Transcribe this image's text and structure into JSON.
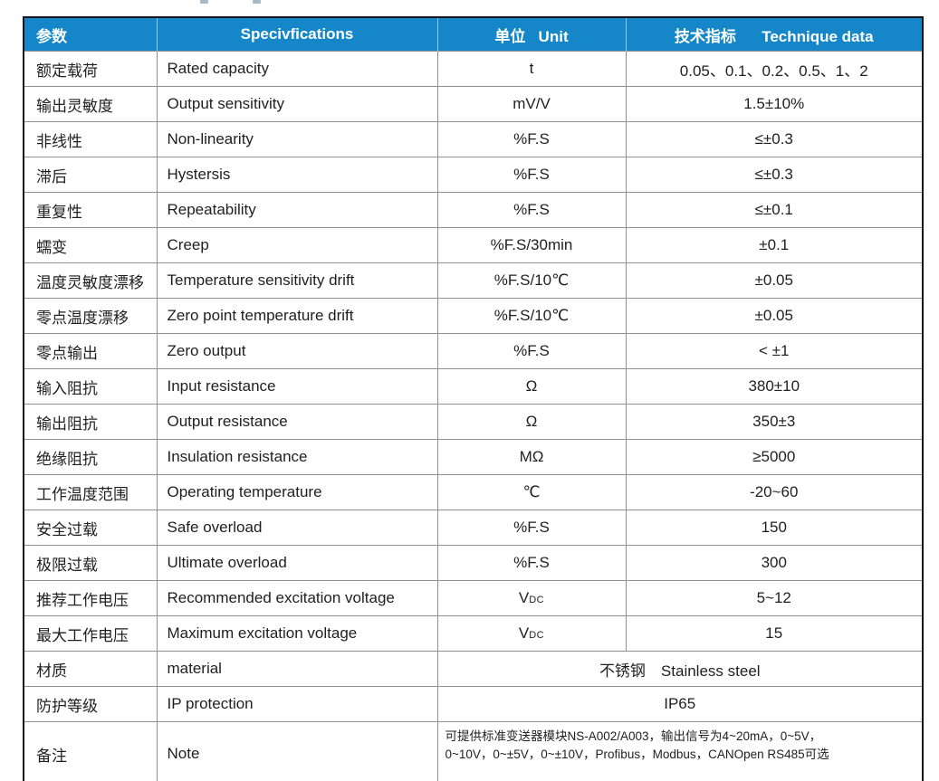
{
  "colors": {
    "header_bg": "#1587c8",
    "header_text": "#ffffff",
    "outer_border": "#15151d",
    "grid_line": "#8f8f8f",
    "body_text": "#1f1f1f"
  },
  "table": {
    "header": {
      "param": "参数",
      "spec": "Specivfications",
      "unit": "单位   Unit",
      "data": "技术指标      Technique data"
    },
    "rows": [
      {
        "cn": "额定载荷",
        "en": "Rated capacity",
        "unit": "t",
        "value": "0.05、0.1、0.2、0.5、1、2"
      },
      {
        "cn": "输出灵敏度",
        "en": "Output sensitivity",
        "unit": "mV/V",
        "value": "1.5±10%"
      },
      {
        "cn": "非线性",
        "en": "Non-linearity",
        "unit": "%F.S",
        "value": "≤±0.3"
      },
      {
        "cn": "滞后",
        "en": "Hystersis",
        "unit": "%F.S",
        "value": "≤±0.3"
      },
      {
        "cn": "重复性",
        "en": "Repeatability",
        "unit": "%F.S",
        "value": "≤±0.1"
      },
      {
        "cn": "蠕变",
        "en": "Creep",
        "unit": "%F.S/30min",
        "value": "±0.1"
      },
      {
        "cn": "温度灵敏度漂移",
        "en": "Temperature sensitivity drift",
        "unit": "%F.S/10℃",
        "value": "±0.05"
      },
      {
        "cn": "零点温度漂移",
        "en": "Zero point temperature drift",
        "unit": "%F.S/10℃",
        "value": "±0.05"
      },
      {
        "cn": "零点输出",
        "en": "Zero output",
        "unit": "%F.S",
        "value": "< ±1"
      },
      {
        "cn": "输入阻抗",
        "en": "Input resistance",
        "unit": "Ω",
        "value": "380±10"
      },
      {
        "cn": "输出阻抗",
        "en": "Output resistance",
        "unit": "Ω",
        "value": "350±3"
      },
      {
        "cn": "绝缘阻抗",
        "en": "Insulation resistance",
        "unit": "MΩ",
        "value": "≥5000"
      },
      {
        "cn": "工作温度范围",
        "en": "Operating temperature",
        "unit": "℃",
        "value": "-20~60"
      },
      {
        "cn": "安全过载",
        "en": "Safe overload",
        "unit": "%F.S",
        "value": "150"
      },
      {
        "cn": "极限过载",
        "en": "Ultimate overload",
        "unit": "%F.S",
        "value": "300"
      },
      {
        "cn": "推荐工作电压",
        "en": "Recommended excitation voltage",
        "unit": {
          "base": "V",
          "small": "DC"
        },
        "value": "5~12"
      },
      {
        "cn": "最大工作电压",
        "en": "Maximum excitation voltage",
        "unit": {
          "base": "V",
          "small": "DC"
        },
        "value": "15"
      },
      {
        "cn": "材质",
        "en": "material",
        "merged": "不锈钢　Stainless steel"
      },
      {
        "cn": "防护等级",
        "en": "IP protection",
        "merged": "IP65"
      },
      {
        "cn": "备注",
        "en": "Note",
        "note_lines": [
          "可提供标准变送器模块NS-A002/A003，输出信号为4~20mA，0~5V，",
          "0~10V，0~±5V，0~±10V，Profibus，Modbus，CANOpen RS485可选"
        ]
      }
    ]
  }
}
